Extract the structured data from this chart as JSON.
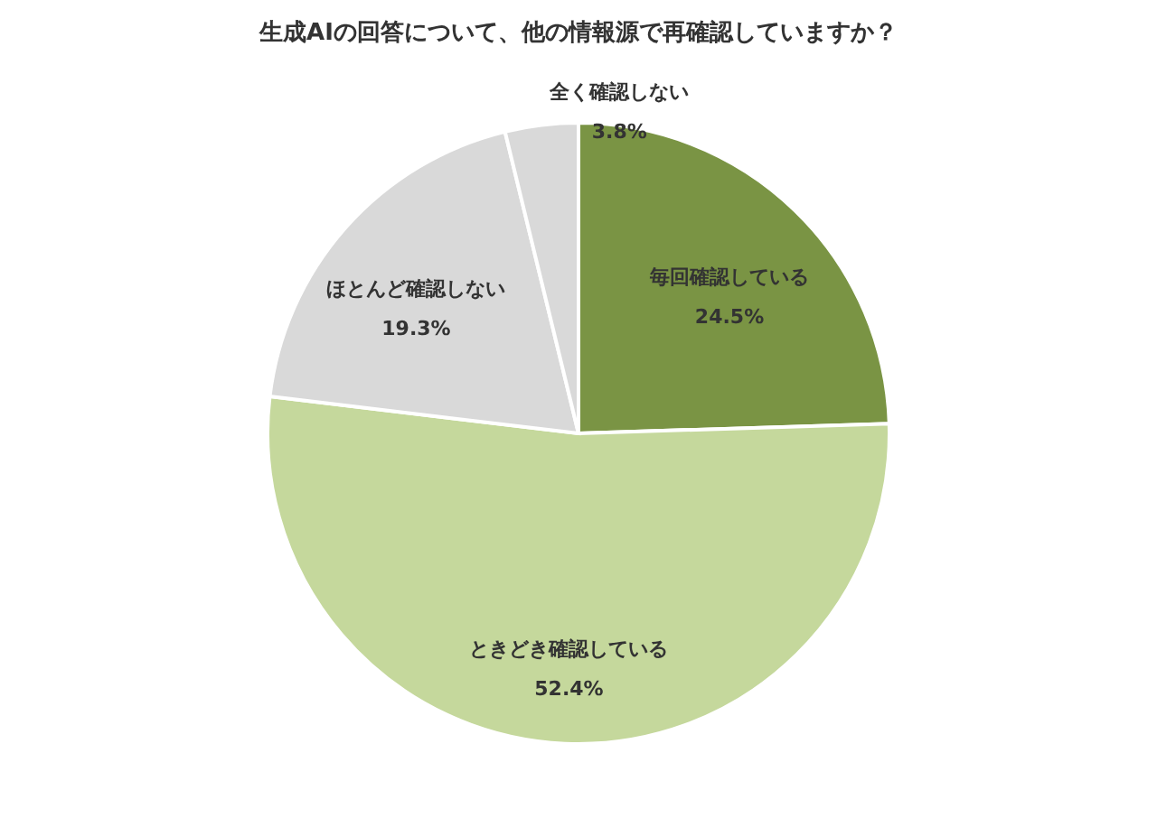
{
  "chart_data": {
    "type": "pie",
    "title": "生成AIの回答について、他の情報源で再確認していますか？",
    "categories": [
      "毎回確認している",
      "ときどき確認している",
      "ほとんど確認しない",
      "全く確認しない"
    ],
    "values": [
      24.5,
      52.4,
      19.3,
      3.8
    ],
    "colors": [
      "#7a9444",
      "#c5d89c",
      "#d9d9d9",
      "#d9d9d9"
    ],
    "value_labels": [
      "24.5%",
      "52.4%",
      "19.3%",
      "3.8%"
    ],
    "legend": false
  }
}
